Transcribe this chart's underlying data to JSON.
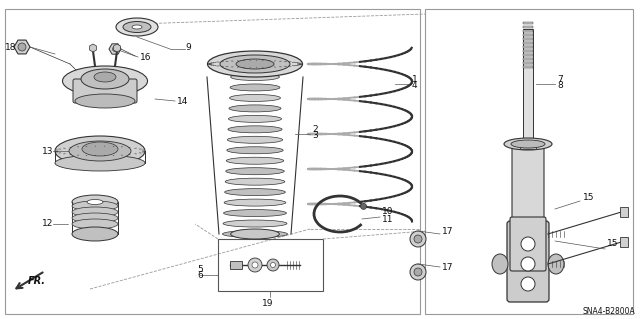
{
  "bg_color": "#ffffff",
  "line_color": "#333333",
  "text_color": "#111111",
  "label_fontsize": 6.5,
  "diagram_code": "SNA4-B2800A",
  "border_color": "#999999"
}
